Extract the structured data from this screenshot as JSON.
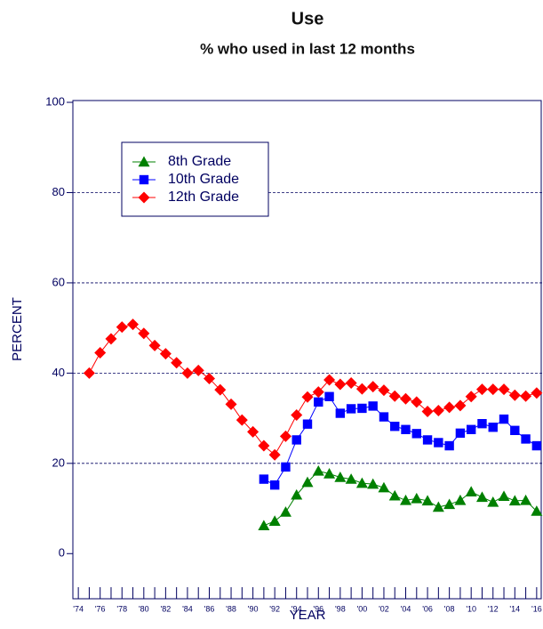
{
  "chart_data": {
    "type": "line",
    "title": "Use",
    "subtitle": "% who used in last 12 months",
    "xlabel": "YEAR",
    "ylabel": "PERCENT",
    "x": [
      1975,
      1976,
      1977,
      1978,
      1979,
      1980,
      1981,
      1982,
      1983,
      1984,
      1985,
      1986,
      1987,
      1988,
      1989,
      1990,
      1991,
      1992,
      1993,
      1994,
      1995,
      1996,
      1997,
      1998,
      1999,
      2000,
      2001,
      2002,
      2003,
      2004,
      2005,
      2006,
      2007,
      2008,
      2009,
      2010,
      2011,
      2012,
      2013,
      2014,
      2015,
      2016
    ],
    "series": [
      {
        "name": "8th Grade",
        "color": "#008000",
        "marker": "triangle",
        "values": [
          null,
          null,
          null,
          null,
          null,
          null,
          null,
          null,
          null,
          null,
          null,
          null,
          null,
          null,
          null,
          null,
          6.2,
          7.2,
          9.2,
          13.0,
          15.8,
          18.3,
          17.7,
          16.9,
          16.5,
          15.6,
          15.4,
          14.6,
          12.8,
          11.8,
          12.2,
          11.7,
          10.3,
          10.9,
          11.8,
          13.7,
          12.5,
          11.4,
          12.7,
          11.7,
          11.8,
          9.4
        ]
      },
      {
        "name": "10th Grade",
        "color": "#0000ff",
        "marker": "square",
        "values": [
          null,
          null,
          null,
          null,
          null,
          null,
          null,
          null,
          null,
          null,
          null,
          null,
          null,
          null,
          null,
          null,
          16.5,
          15.2,
          19.2,
          25.2,
          28.7,
          33.6,
          34.8,
          31.1,
          32.1,
          32.2,
          32.7,
          30.3,
          28.2,
          27.5,
          26.6,
          25.2,
          24.6,
          23.9,
          26.7,
          27.5,
          28.8,
          28.0,
          29.8,
          27.3,
          25.4,
          23.9
        ]
      },
      {
        "name": "12th Grade",
        "color": "#ff0000",
        "marker": "diamond",
        "values": [
          40.0,
          44.5,
          47.6,
          50.2,
          50.8,
          48.8,
          46.1,
          44.3,
          42.3,
          40.0,
          40.6,
          38.8,
          36.3,
          33.1,
          29.6,
          27.0,
          23.9,
          21.9,
          26.0,
          30.7,
          34.7,
          35.8,
          38.5,
          37.5,
          37.8,
          36.5,
          37.0,
          36.2,
          34.9,
          34.3,
          33.6,
          31.5,
          31.7,
          32.4,
          32.8,
          34.8,
          36.4,
          36.4,
          36.4,
          35.1,
          34.9,
          35.6
        ]
      }
    ],
    "xlim": [
      1973.5,
      2016.5
    ],
    "xticks": [
      {
        "value": 1974,
        "label": "'74"
      },
      {
        "value": 1976,
        "label": "'76"
      },
      {
        "value": 1978,
        "label": "'78"
      },
      {
        "value": 1980,
        "label": "'80"
      },
      {
        "value": 1982,
        "label": "'82"
      },
      {
        "value": 1984,
        "label": "'84"
      },
      {
        "value": 1986,
        "label": "'86"
      },
      {
        "value": 1988,
        "label": "'88"
      },
      {
        "value": 1990,
        "label": "'90"
      },
      {
        "value": 1992,
        "label": "'92"
      },
      {
        "value": 1994,
        "label": "'94"
      },
      {
        "value": 1996,
        "label": "'96"
      },
      {
        "value": 1998,
        "label": "'98"
      },
      {
        "value": 2000,
        "label": "'00"
      },
      {
        "value": 2002,
        "label": "'02"
      },
      {
        "value": 2004,
        "label": "'04"
      },
      {
        "value": 2006,
        "label": "'06"
      },
      {
        "value": 2008,
        "label": "'08"
      },
      {
        "value": 2010,
        "label": "'10"
      },
      {
        "value": 2012,
        "label": "'12"
      },
      {
        "value": 2014,
        "label": "'14"
      },
      {
        "value": 2016,
        "label": "'16"
      }
    ],
    "xminor_ticks": [
      1975,
      1977,
      1979,
      1981,
      1983,
      1985,
      1987,
      1989,
      1991,
      1993,
      1995,
      1997,
      1999,
      2001,
      2003,
      2005,
      2007,
      2009,
      2011,
      2013,
      2015
    ],
    "ylim": [
      -10,
      100.4
    ],
    "yticks": [
      0,
      20,
      40,
      60,
      80,
      100
    ],
    "grid_lines": [
      20,
      40,
      60,
      80
    ],
    "legend": "upper left"
  }
}
